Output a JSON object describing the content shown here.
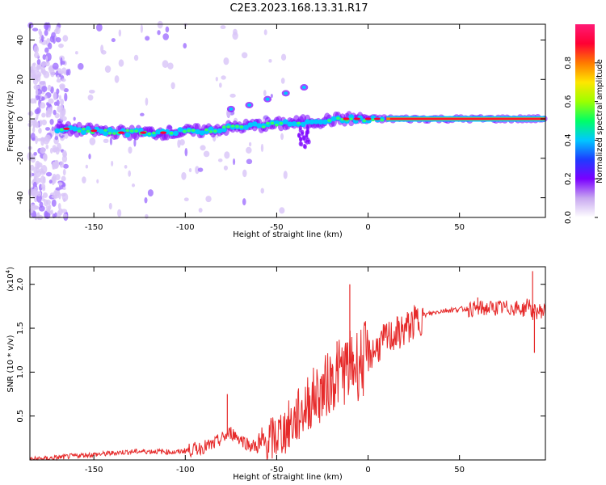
{
  "title": "C2E3.2023.168.13.31.R17",
  "chart_data": [
    {
      "type": "heatmap",
      "name": "spectrogram",
      "xlabel": "Height of straight line (km)",
      "ylabel": "Frequency (Hz)",
      "xlim": [
        -185,
        97
      ],
      "ylim": [
        -50,
        48
      ],
      "xticks": [
        -150,
        -100,
        -50,
        0,
        50
      ],
      "xtick_labels": [
        "-150",
        "-100",
        "-50",
        "0",
        "50"
      ],
      "yticks": [
        -40,
        -20,
        0,
        20,
        40
      ],
      "ytick_labels": [
        "-40",
        "-20",
        "0",
        "20",
        "40"
      ],
      "colorbar": {
        "label": "Normalized spectral amplitude",
        "range": [
          0,
          1
        ],
        "ticks": [
          0.0,
          0.2,
          0.4,
          0.6,
          0.8
        ],
        "tick_labels": [
          "0.0",
          "0.2",
          "0.4",
          "0.6",
          "0.8"
        ],
        "colormap": [
          "#ffffff",
          "#c8a8f0",
          "#7a00ff",
          "#1e3cff",
          "#00c8ff",
          "#00ff66",
          "#9cff00",
          "#ffe600",
          "#ff7a00",
          "#ff0033",
          "#ff1a75"
        ]
      },
      "main_band": [
        [
          -170,
          -5
        ],
        [
          -150,
          -6
        ],
        [
          -130,
          -7
        ],
        [
          -110,
          -7
        ],
        [
          -90,
          -6
        ],
        [
          -70,
          -4
        ],
        [
          -55,
          -3
        ],
        [
          -40,
          -2
        ],
        [
          -25,
          -1
        ],
        [
          -15,
          0
        ],
        [
          0,
          0
        ],
        [
          97,
          0
        ]
      ],
      "harmonic": [
        [
          -75,
          5
        ],
        [
          -65,
          7
        ],
        [
          -55,
          10
        ],
        [
          -45,
          13
        ],
        [
          -35,
          16
        ]
      ],
      "grid": false
    },
    {
      "type": "line",
      "name": "snr",
      "xlabel": "Height of straight line (km)",
      "ylabel": "SNR (10 * v/v)",
      "y_multiplier_label": "(x10",
      "y_multiplier_exp": "4",
      "y_multiplier_close": ")",
      "xlim": [
        -185,
        97
      ],
      "ylim": [
        0,
        2.2
      ],
      "xticks": [
        -150,
        -100,
        -50,
        0,
        50
      ],
      "xtick_labels": [
        "-150",
        "-100",
        "-50",
        "0",
        "50"
      ],
      "yticks": [
        0.5,
        1.0,
        1.5,
        2.0
      ],
      "ytick_labels": [
        "0.5",
        "1.0",
        "1.5",
        "2.0"
      ],
      "color": "#e62a2a",
      "series": [
        {
          "x": [
            -185,
            -175,
            -165,
            -155,
            -145,
            -135,
            -125,
            -115,
            -105,
            -95,
            -85,
            -75,
            -70,
            -65,
            -60,
            -55,
            -50,
            -45,
            -40,
            -35,
            -30,
            -25,
            -20,
            -15,
            -10,
            -5,
            0,
            5,
            10,
            15,
            20,
            25,
            30,
            40,
            50,
            60,
            70,
            80,
            85,
            88,
            90,
            92,
            95,
            97
          ],
          "values": [
            0.01,
            0.02,
            0.04,
            0.06,
            0.07,
            0.09,
            0.1,
            0.1,
            0.09,
            0.13,
            0.18,
            0.32,
            0.25,
            0.18,
            0.15,
            0.22,
            0.3,
            0.38,
            0.48,
            0.62,
            0.75,
            0.82,
            0.95,
            1.05,
            1.1,
            1.15,
            1.2,
            1.3,
            1.4,
            1.45,
            1.5,
            1.58,
            1.65,
            1.7,
            1.72,
            1.73,
            1.74,
            1.74,
            1.72,
            1.8,
            1.68,
            1.7,
            1.71,
            1.7
          ]
        }
      ],
      "spikes": [
        [
          -77,
          0.75
        ],
        [
          -40,
          0.55
        ],
        [
          -30,
          0.85
        ],
        [
          -20,
          1.05
        ],
        [
          -17,
          1.35
        ],
        [
          -10,
          2.0
        ],
        [
          -8,
          1.2
        ],
        [
          60,
          1.85
        ],
        [
          90,
          2.15
        ],
        [
          91,
          1.22
        ]
      ],
      "grid": false
    }
  ]
}
